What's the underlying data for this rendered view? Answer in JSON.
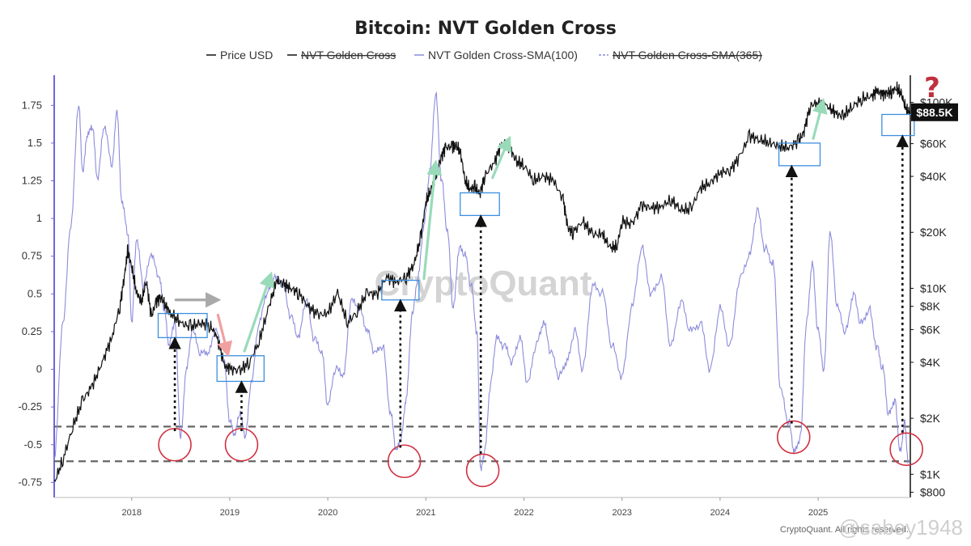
{
  "chart_data": {
    "type": "line",
    "title": "Bitcoin: NVT Golden Cross",
    "legend": [
      {
        "name": "Price USD",
        "color": "#111111",
        "style": "solid",
        "hidden": false
      },
      {
        "name": "NVT Golden Cross",
        "color": "#111111",
        "style": "solid",
        "hidden": true
      },
      {
        "name": "NVT Golden Cross-SMA(100)",
        "color": "#8c8cdc",
        "style": "solid",
        "hidden": false
      },
      {
        "name": "NVT Golden Cross-SMA(365)",
        "color": "#8c8cdc",
        "style": "dashed",
        "hidden": true
      }
    ],
    "x_ticks": [
      "2018",
      "2019",
      "2020",
      "2021",
      "2022",
      "2023",
      "2024",
      "2025"
    ],
    "x_range": [
      2017.21,
      2025.94
    ],
    "y_left_ticks": [
      "1.75",
      "1.5",
      "1.25",
      "1",
      "0.75",
      "0.5",
      "0.25",
      "0",
      "-0.25",
      "-0.5",
      "-0.75"
    ],
    "y_left_range": [
      -0.85,
      1.95
    ],
    "y_right_ticks": [
      "$100K",
      "$60K",
      "$40K",
      "$20K",
      "$10K",
      "$8K",
      "$6K",
      "$4K",
      "$2K",
      "$1K",
      "$800"
    ],
    "y_right_range": [
      750,
      140000
    ],
    "y_right_scale": "log",
    "current_price_label": "$88.5K",
    "reference_lines": [
      -0.38,
      -0.61
    ],
    "nvt_sma100": {
      "x": [
        2017.21,
        2017.3,
        2017.38,
        2017.46,
        2017.5,
        2017.55,
        2017.6,
        2017.65,
        2017.72,
        2017.8,
        2017.85,
        2017.9,
        2017.96,
        2018.0,
        2018.05,
        2018.12,
        2018.2,
        2018.28,
        2018.33,
        2018.38,
        2018.44,
        2018.5,
        2018.56,
        2018.62,
        2018.7,
        2018.78,
        2018.86,
        2018.94,
        2019.0,
        2019.05,
        2019.1,
        2019.16,
        2019.22,
        2019.3,
        2019.38,
        2019.46,
        2019.54,
        2019.62,
        2019.7,
        2019.78,
        2019.86,
        2019.94,
        2020.0,
        2020.08,
        2020.16,
        2020.24,
        2020.32,
        2020.4,
        2020.48,
        2020.56,
        2020.64,
        2020.7,
        2020.75,
        2020.8,
        2020.86,
        2020.92,
        2020.98,
        2021.04,
        2021.1,
        2021.16,
        2021.22,
        2021.28,
        2021.34,
        2021.4,
        2021.46,
        2021.52,
        2021.56,
        2021.6,
        2021.66,
        2021.72,
        2021.8,
        2021.88,
        2021.96,
        2022.04,
        2022.12,
        2022.2,
        2022.28,
        2022.36,
        2022.44,
        2022.52,
        2022.6,
        2022.7,
        2022.8,
        2022.9,
        2023.0,
        2023.1,
        2023.2,
        2023.3,
        2023.4,
        2023.5,
        2023.6,
        2023.7,
        2023.8,
        2023.9,
        2024.0,
        2024.1,
        2024.2,
        2024.3,
        2024.38,
        2024.46,
        2024.54,
        2024.62,
        2024.7,
        2024.76,
        2024.82,
        2024.88,
        2024.94,
        2025.0,
        2025.06,
        2025.12,
        2025.2,
        2025.28,
        2025.36,
        2025.44,
        2025.52,
        2025.6,
        2025.66,
        2025.72,
        2025.78,
        2025.84,
        2025.88,
        2025.92
      ],
      "y": [
        -0.6,
        0.3,
        0.95,
        1.75,
        1.3,
        1.55,
        1.6,
        1.25,
        1.6,
        1.35,
        1.7,
        1.1,
        0.9,
        0.3,
        0.85,
        0.55,
        0.75,
        0.6,
        0.4,
        0.15,
        0.3,
        -0.45,
        0.0,
        0.25,
        0.1,
        0.1,
        0.25,
        0.05,
        -0.35,
        -0.45,
        -0.3,
        -0.45,
        -0.1,
        0.3,
        0.5,
        0.6,
        0.55,
        0.35,
        0.2,
        0.45,
        0.2,
        0.1,
        -0.25,
        0.0,
        -0.05,
        0.45,
        0.4,
        0.25,
        0.1,
        0.15,
        -0.3,
        -0.55,
        -0.45,
        -0.2,
        0.35,
        0.6,
        0.95,
        1.3,
        1.82,
        1.25,
        0.9,
        0.4,
        0.8,
        0.75,
        0.55,
        0.25,
        -0.68,
        -0.55,
        -0.1,
        0.2,
        0.15,
        0.05,
        0.2,
        -0.1,
        0.15,
        0.3,
        0.1,
        -0.05,
        0.05,
        0.25,
        0.0,
        0.55,
        0.5,
        0.15,
        -0.05,
        0.4,
        0.8,
        0.5,
        0.6,
        0.15,
        0.45,
        0.25,
        0.3,
        0.0,
        0.4,
        0.15,
        0.6,
        0.75,
        1.05,
        0.8,
        0.7,
        -0.15,
        -0.35,
        -0.55,
        -0.45,
        0.3,
        0.7,
        0.25,
        0.0,
        0.9,
        0.4,
        0.25,
        0.5,
        0.3,
        0.4,
        0.15,
        0.0,
        -0.3,
        -0.2,
        -0.55,
        -0.35,
        -0.6
      ]
    },
    "price_usd": {
      "x": [
        2017.21,
        2017.3,
        2017.4,
        2017.5,
        2017.6,
        2017.7,
        2017.8,
        2017.88,
        2017.93,
        2017.96,
        2018.0,
        2018.05,
        2018.1,
        2018.15,
        2018.2,
        2018.25,
        2018.3,
        2018.35,
        2018.4,
        2018.5,
        2018.6,
        2018.7,
        2018.8,
        2018.87,
        2018.95,
        2019.0,
        2019.1,
        2019.2,
        2019.3,
        2019.4,
        2019.48,
        2019.55,
        2019.62,
        2019.7,
        2019.8,
        2019.9,
        2020.0,
        2020.1,
        2020.2,
        2020.3,
        2020.4,
        2020.5,
        2020.6,
        2020.7,
        2020.8,
        2020.88,
        2020.95,
        2021.0,
        2021.05,
        2021.1,
        2021.15,
        2021.2,
        2021.27,
        2021.3,
        2021.35,
        2021.4,
        2021.45,
        2021.5,
        2021.55,
        2021.6,
        2021.7,
        2021.78,
        2021.86,
        2021.92,
        2022.0,
        2022.1,
        2022.2,
        2022.3,
        2022.4,
        2022.45,
        2022.5,
        2022.6,
        2022.7,
        2022.8,
        2022.88,
        2022.95,
        2023.0,
        2023.1,
        2023.2,
        2023.3,
        2023.4,
        2023.5,
        2023.6,
        2023.7,
        2023.8,
        2023.9,
        2024.0,
        2024.1,
        2024.2,
        2024.3,
        2024.4,
        2024.5,
        2024.6,
        2024.7,
        2024.8,
        2024.85,
        2024.92,
        2025.0,
        2025.1,
        2025.18,
        2025.25,
        2025.35,
        2025.45,
        2025.55,
        2025.6,
        2025.65,
        2025.7,
        2025.75,
        2025.8,
        2025.85,
        2025.9,
        2025.94
      ],
      "y": [
        900,
        1200,
        1800,
        2500,
        3000,
        4000,
        5500,
        8000,
        12000,
        16000,
        13000,
        9500,
        8500,
        11000,
        7000,
        8500,
        9000,
        8000,
        7300,
        6500,
        6200,
        6500,
        6300,
        5500,
        3800,
        3700,
        3600,
        4000,
        5200,
        8000,
        11000,
        10500,
        10000,
        9500,
        8000,
        7200,
        7300,
        9500,
        6500,
        7500,
        9500,
        9200,
        11500,
        10800,
        11500,
        13500,
        19000,
        29000,
        34000,
        40000,
        50000,
        57000,
        58000,
        59000,
        55000,
        38000,
        34000,
        35000,
        32000,
        40000,
        48000,
        61000,
        57000,
        48000,
        46000,
        38000,
        40000,
        38000,
        30000,
        21000,
        20000,
        23000,
        19500,
        19500,
        16500,
        16800,
        23000,
        22000,
        28000,
        27000,
        27500,
        30000,
        26500,
        26500,
        34500,
        37000,
        42000,
        43000,
        51000,
        66000,
        63000,
        61000,
        58000,
        57000,
        62000,
        68000,
        96000,
        100000,
        95000,
        87000,
        84000,
        95000,
        105000,
        108000,
        116000,
        110000,
        112000,
        114000,
        120000,
        110000,
        91000,
        88500
      ]
    },
    "annotations": [
      {
        "type": "box",
        "x0": 2018.27,
        "x1": 2018.77,
        "y0": 0.21,
        "y1": 0.37,
        "color": "#3c8fe0"
      },
      {
        "type": "box",
        "x0": 2018.87,
        "x1": 2019.35,
        "y0": -0.08,
        "y1": 0.09,
        "color": "#3c8fe0"
      },
      {
        "type": "box",
        "x0": 2020.55,
        "x1": 2020.93,
        "y0": 0.46,
        "y1": 0.59,
        "color": "#3c8fe0"
      },
      {
        "type": "box",
        "x0": 2021.35,
        "x1": 2021.75,
        "y0": 1.02,
        "y1": 1.17,
        "color": "#3c8fe0"
      },
      {
        "type": "box",
        "x0": 2024.6,
        "x1": 2025.02,
        "y0": 1.35,
        "y1": 1.5,
        "color": "#3c8fe0"
      },
      {
        "type": "box",
        "x0": 2025.65,
        "x1": 2025.98,
        "y0": 1.55,
        "y1": 1.69,
        "color": "#3c8fe0"
      },
      {
        "type": "circle",
        "x": 2018.44,
        "y": -0.5,
        "color": "#d03040"
      },
      {
        "type": "circle",
        "x": 2019.12,
        "y": -0.5,
        "color": "#d03040"
      },
      {
        "type": "circle",
        "x": 2020.78,
        "y": -0.61,
        "color": "#d03040"
      },
      {
        "type": "circle",
        "x": 2021.58,
        "y": -0.67,
        "color": "#d03040"
      },
      {
        "type": "circle",
        "x": 2024.75,
        "y": -0.45,
        "color": "#d03040"
      },
      {
        "type": "circle",
        "x": 2025.9,
        "y": -0.53,
        "color": "#d03040"
      },
      {
        "type": "dotted-arrow",
        "x": 2018.44,
        "y0": -0.41,
        "y1": 0.2
      },
      {
        "type": "dotted-arrow",
        "x": 2019.12,
        "y0": -0.41,
        "y1": -0.09
      },
      {
        "type": "dotted-arrow",
        "x": 2020.74,
        "y0": -0.52,
        "y1": 0.45
      },
      {
        "type": "dotted-arrow",
        "x": 2021.56,
        "y0": -0.56,
        "y1": 1.01
      },
      {
        "type": "dotted-arrow",
        "x": 2024.73,
        "y0": -0.36,
        "y1": 1.34
      },
      {
        "type": "dotted-arrow",
        "x": 2025.86,
        "y0": -0.42,
        "y1": 1.54
      },
      {
        "type": "trend-arrow",
        "x0": 2018.45,
        "y0": 0.46,
        "x1": 2018.88,
        "y1": 0.46,
        "color": "#a9a9a9"
      },
      {
        "type": "trend-arrow",
        "x0": 2018.88,
        "y0": 0.36,
        "x1": 2018.98,
        "y1": 0.1,
        "color": "#f0a0a0"
      },
      {
        "type": "trend-arrow",
        "x0": 2019.15,
        "y0": 0.12,
        "x1": 2019.42,
        "y1": 0.63,
        "color": "#99dbb9"
      },
      {
        "type": "trend-arrow",
        "x0": 2020.98,
        "y0": 0.6,
        "x1": 2021.1,
        "y1": 1.37,
        "color": "#99dbb9"
      },
      {
        "type": "trend-arrow",
        "x0": 2021.68,
        "y0": 1.27,
        "x1": 2021.85,
        "y1": 1.53,
        "color": "#99dbb9"
      },
      {
        "type": "trend-arrow",
        "x0": 2024.95,
        "y0": 1.53,
        "x1": 2025.05,
        "y1": 1.78,
        "color": "#99dbb9"
      }
    ]
  },
  "watermark": "CryptoQuant",
  "question_mark": "?",
  "footer_source": "CryptoQuant. All rights reserved.",
  "footer_handle": "@saboy1948",
  "colors": {
    "price": "#111111",
    "nvt": "#8c8cdc",
    "axis_left": "#6e66d8",
    "box": "#3c8fe0",
    "circle": "#d03040",
    "question": "#c0303c"
  }
}
